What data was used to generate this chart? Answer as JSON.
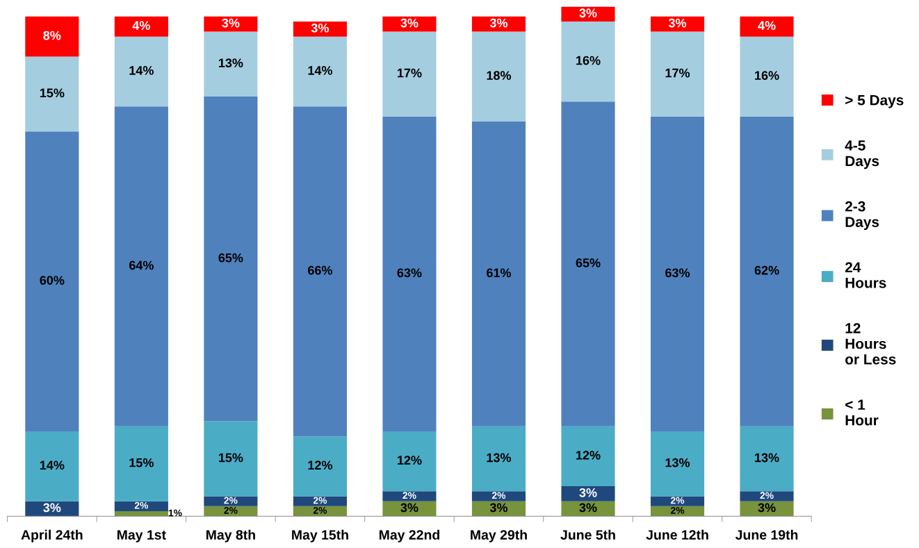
{
  "chart_data": {
    "type": "bar",
    "stacked": true,
    "legend": "right",
    "grid": false,
    "tick_labels": "x",
    "categories": [
      "April 24th",
      "May 1st",
      "May 8th",
      "May 15th",
      "May 22nd",
      "May 29th",
      "June 5th",
      "June 12th",
      "June 19th"
    ],
    "series": [
      {
        "name": "< 1\nHour",
        "color": "#77933c",
        "values": [
          null,
          1,
          2,
          2,
          3,
          3,
          3,
          2,
          3
        ],
        "value_labels": [
          null,
          "1%",
          "2%",
          "2%",
          "3%",
          "3%",
          "3%",
          "2%",
          "3%"
        ]
      },
      {
        "name": "12\nHours\nor Less",
        "color": "#1f497d",
        "values": [
          3,
          2,
          2,
          2,
          2,
          2,
          3,
          2,
          2
        ],
        "value_labels": [
          "3%",
          "2%",
          "2%",
          "2%",
          "2%",
          "2%",
          "3%",
          "2%",
          "2%"
        ]
      },
      {
        "name": "24\nHours",
        "color": "#4bacc6",
        "values": [
          14,
          15,
          15,
          12,
          12,
          13,
          12,
          13,
          13
        ],
        "value_labels": [
          "14%",
          "15%",
          "15%",
          "12%",
          "12%",
          "13%",
          "12%",
          "13%",
          "13%"
        ]
      },
      {
        "name": "2-3\nDays",
        "color": "#4f81bd",
        "values": [
          60,
          64,
          65,
          66,
          63,
          61,
          65,
          63,
          62
        ],
        "value_labels": [
          "60%",
          "64%",
          "65%",
          "66%",
          "63%",
          "61%",
          "65%",
          "63%",
          "62%"
        ]
      },
      {
        "name": "4-5\nDays",
        "color": "#a5cde0",
        "values": [
          15,
          14,
          13,
          14,
          17,
          18,
          16,
          17,
          16
        ],
        "value_labels": [
          "15%",
          "14%",
          "13%",
          "14%",
          "17%",
          "18%",
          "16%",
          "17%",
          "16%"
        ]
      },
      {
        "name": "> 5 Days",
        "color": "#ff0000",
        "values": [
          8,
          4,
          3,
          3,
          3,
          3,
          3,
          3,
          4
        ],
        "value_labels": [
          "8%",
          "4%",
          "3%",
          "3%",
          "3%",
          "3%",
          "3%",
          "3%",
          "4%"
        ]
      }
    ]
  }
}
